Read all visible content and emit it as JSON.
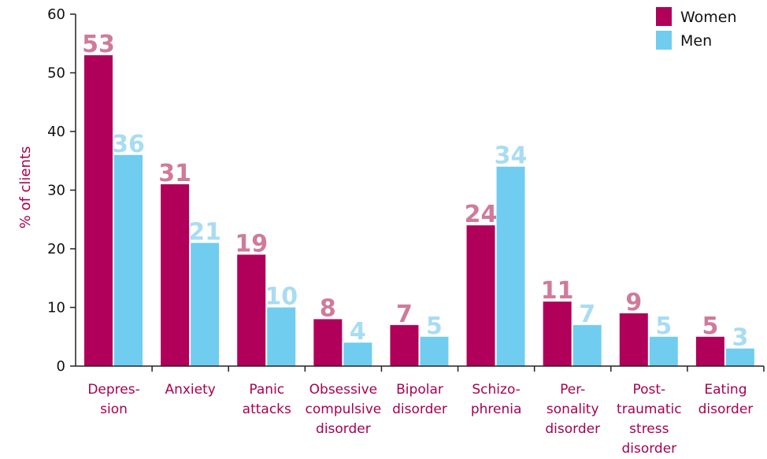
{
  "chart_data": {
    "type": "bar",
    "ylabel": "% of clients",
    "ylim": [
      0,
      60
    ],
    "yticks": [
      0,
      10,
      20,
      30,
      40,
      50,
      60
    ],
    "categories": [
      [
        "Depres-",
        "sion"
      ],
      [
        "Anxiety"
      ],
      [
        "Panic",
        "attacks"
      ],
      [
        "Obsessive",
        "compulsive",
        "disorder"
      ],
      [
        "Bipolar",
        "disorder"
      ],
      [
        "Schizo-",
        "phrenia"
      ],
      [
        "Per-",
        "sonality",
        "disorder"
      ],
      [
        "Post-",
        "traumatic",
        "stress",
        "disorder"
      ],
      [
        "Eating",
        "disorder"
      ]
    ],
    "series": [
      {
        "name": "Women",
        "color": "#b0005a",
        "label_color": "#d07a9a",
        "values": [
          53,
          31,
          19,
          8,
          7,
          24,
          11,
          9,
          5
        ]
      },
      {
        "name": "Men",
        "color": "#70cdf0",
        "label_color": "#a8dcf3",
        "values": [
          36,
          21,
          10,
          4,
          5,
          34,
          7,
          5,
          3
        ]
      }
    ],
    "legend_position": "top-right",
    "grid": false
  }
}
